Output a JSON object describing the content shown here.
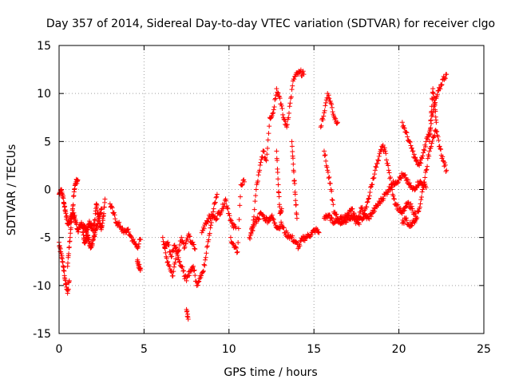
{
  "chart_data": {
    "type": "scatter",
    "title": "Day 357 of 2014, Sidereal Day-to-day VTEC variation (SDTVAR) for receiver clgo",
    "xlabel": "GPS time / hours",
    "ylabel": "SDTVAR / TECUs",
    "xlim": [
      0,
      25
    ],
    "ylim": [
      -15,
      15
    ],
    "xticks": [
      0,
      5,
      10,
      15,
      20,
      25
    ],
    "yticks": [
      -15,
      -10,
      -5,
      0,
      5,
      10,
      15
    ],
    "grid": true,
    "marker": "plus",
    "color": "#ff0000",
    "series": [
      {
        "name": "SDTVAR",
        "segments": [
          {
            "x": [
              0.0,
              0.1,
              0.2,
              0.3,
              0.4,
              0.5,
              0.6,
              0.7,
              0.8,
              0.9,
              1.0,
              1.1,
              1.2,
              1.3,
              1.4,
              1.5,
              1.6,
              1.7,
              1.8,
              1.9,
              2.0,
              2.1,
              2.2,
              2.3,
              2.4,
              2.5,
              2.6,
              2.7
            ],
            "y": [
              -0.5,
              0.0,
              -0.5,
              -1.5,
              -2.5,
              -3.5,
              -3.5,
              -3.0,
              -2.5,
              -2.8,
              -3.5,
              -4.2,
              -4.0,
              -3.6,
              -3.8,
              -4.0,
              -4.4,
              -3.9,
              -3.5,
              -3.8,
              -4.3,
              -3.2,
              -1.5,
              -2.5,
              -3.5,
              -4.0,
              -2.8,
              -1.0
            ]
          },
          {
            "x": [
              0.0,
              0.1,
              0.2,
              0.3,
              0.4,
              0.5,
              0.6
            ],
            "y": [
              -5.5,
              -6.5,
              -7.5,
              -8.5,
              -9.8,
              -10.8,
              -9.5
            ]
          },
          {
            "x": [
              0.5,
              0.6,
              0.7,
              0.8,
              0.9,
              1.0,
              1.1
            ],
            "y": [
              -8.0,
              -6.0,
              -4.0,
              -2.0,
              0.0,
              0.8,
              1.0
            ]
          },
          {
            "x": [
              1.4,
              1.5,
              1.6,
              1.7,
              1.8,
              1.9,
              2.0,
              2.1,
              2.2,
              2.3,
              2.4,
              2.5
            ],
            "y": [
              -4.5,
              -5.5,
              -5.0,
              -4.8,
              -5.8,
              -6.0,
              -5.2,
              -4.5,
              -4.0,
              -3.2,
              -2.5,
              -2.0
            ]
          },
          {
            "x": [
              3.0,
              3.2,
              3.4,
              3.6,
              3.8,
              4.0,
              4.2,
              4.4,
              4.6,
              4.8
            ],
            "y": [
              -1.5,
              -2.5,
              -3.5,
              -3.8,
              -4.5,
              -4.2,
              -4.8,
              -5.5,
              -6.0,
              -5.2
            ]
          },
          {
            "x": [
              4.6,
              4.7,
              4.8
            ],
            "y": [
              -7.5,
              -8.0,
              -8.2
            ]
          },
          {
            "x": [
              6.1,
              6.3,
              6.5,
              6.7,
              6.9,
              7.1,
              7.3,
              7.5,
              7.7,
              7.9,
              8.1,
              8.3,
              8.5,
              8.7,
              8.9,
              9.1,
              9.3
            ],
            "y": [
              -5.0,
              -7.0,
              -8.0,
              -9.0,
              -6.5,
              -7.5,
              -8.5,
              -9.5,
              -8.5,
              -8.0,
              -10.0,
              -9.0,
              -8.5,
              -6.0,
              -4.0,
              -2.0,
              -0.5
            ]
          },
          {
            "x": [
              6.2,
              6.4,
              6.6,
              6.8,
              7.0,
              7.2,
              7.4,
              7.6,
              7.8,
              8.0
            ],
            "y": [
              -6.0,
              -5.5,
              -7.0,
              -5.8,
              -6.5,
              -5.0,
              -6.0,
              -4.8,
              -5.5,
              -6.2
            ]
          },
          {
            "x": [
              7.5,
              7.6
            ],
            "y": [
              -12.5,
              -13.5
            ]
          },
          {
            "x": [
              8.4,
              8.6,
              8.8,
              9.0,
              9.2,
              9.4,
              9.6,
              9.8,
              10.0,
              10.2,
              10.4
            ],
            "y": [
              -4.5,
              -3.5,
              -3.0,
              -2.8,
              -3.0,
              -2.5,
              -2.0,
              -1.0,
              -2.5,
              -3.8,
              -4.0
            ]
          },
          {
            "x": [
              10.1,
              10.3,
              10.5,
              10.7,
              10.9
            ],
            "y": [
              -5.0,
              -6.0,
              -6.5,
              0.5,
              0.8
            ]
          },
          {
            "x": [
              11.2,
              11.4,
              11.6,
              11.8,
              12.0,
              12.2,
              12.4,
              12.6,
              12.8,
              13.0,
              13.2,
              13.4,
              13.6,
              13.8,
              14.0,
              14.2,
              14.4
            ],
            "y": [
              -5.0,
              -4.0,
              0.0,
              2.0,
              4.0,
              3.0,
              7.5,
              8.0,
              10.5,
              9.5,
              7.5,
              6.5,
              9.0,
              11.5,
              12.0,
              12.2,
              12.0
            ]
          },
          {
            "x": [
              11.3,
              11.5,
              11.7,
              11.9,
              12.1,
              12.3,
              12.5,
              12.7,
              12.9,
              13.1,
              13.3,
              13.5,
              13.7,
              13.9,
              14.1,
              14.3,
              14.5,
              14.7,
              14.9,
              15.1,
              15.3
            ],
            "y": [
              -4.5,
              -3.5,
              -3.0,
              -2.5,
              -3.0,
              -3.2,
              -2.8,
              -3.5,
              -4.0,
              -3.6,
              -4.5,
              -4.8,
              -5.0,
              -5.5,
              -6.0,
              -5.2,
              -5.0,
              -4.8,
              -4.5,
              -4.2,
              -4.5
            ]
          },
          {
            "x": [
              12.8,
              12.9,
              13.0,
              13.1
            ],
            "y": [
              4.0,
              0.5,
              -2.5,
              -2.0
            ]
          },
          {
            "x": [
              13.7,
              13.8,
              13.9,
              14.0
            ],
            "y": [
              5.0,
              2.0,
              -0.5,
              -3.0
            ]
          },
          {
            "x": [
              15.4,
              15.6,
              15.8,
              16.0,
              16.2,
              16.4
            ],
            "y": [
              6.5,
              8.0,
              10.0,
              9.0,
              7.5,
              7.0
            ]
          },
          {
            "x": [
              15.6,
              15.8,
              16.0,
              16.2,
              16.4,
              16.6,
              16.8,
              17.0,
              17.2,
              17.4,
              17.6,
              17.8,
              18.0,
              18.2,
              18.4,
              18.6,
              18.8,
              19.0,
              19.2,
              19.4,
              19.6,
              19.8,
              20.0,
              20.2,
              20.4,
              20.6,
              20.8,
              21.0
            ],
            "y": [
              4.0,
              2.0,
              0.0,
              -2.5,
              -3.0,
              -3.5,
              -3.0,
              -2.5,
              -2.0,
              -2.8,
              -3.0,
              -2.0,
              -2.5,
              -1.0,
              0.5,
              2.0,
              3.0,
              4.5,
              4.0,
              2.0,
              0.0,
              -1.5,
              -2.0,
              -2.5,
              -1.8,
              -1.5,
              -2.0,
              -2.8
            ]
          },
          {
            "x": [
              15.6,
              15.8,
              16.0,
              16.2,
              16.4,
              16.6,
              16.8,
              17.0,
              17.2,
              17.4,
              17.6,
              17.8,
              18.0,
              18.2,
              18.4,
              18.6,
              18.8,
              19.0,
              19.2,
              19.4,
              19.6,
              19.8,
              20.0,
              20.2,
              20.4,
              20.6,
              20.8,
              21.0,
              21.2,
              21.4,
              21.6
            ],
            "y": [
              -3.0,
              -2.8,
              -3.0,
              -3.5,
              -3.2,
              -3.0,
              -3.3,
              -3.0,
              -2.8,
              -3.2,
              -3.5,
              -3.0,
              -2.8,
              -3.0,
              -2.5,
              -2.0,
              -1.5,
              -1.0,
              -0.5,
              0.0,
              0.5,
              0.8,
              1.0,
              1.5,
              1.2,
              0.5,
              0.0,
              0.3,
              0.8,
              0.5,
              0.2
            ]
          },
          {
            "x": [
              20.2,
              20.4,
              20.6,
              20.8,
              21.0,
              21.2,
              21.4,
              21.6,
              21.8,
              22.0,
              22.2,
              22.4,
              22.6,
              22.8
            ],
            "y": [
              7.0,
              6.0,
              5.0,
              4.0,
              3.0,
              2.5,
              3.5,
              5.0,
              6.0,
              8.0,
              9.5,
              10.5,
              11.5,
              12.0
            ]
          },
          {
            "x": [
              20.2,
              20.4,
              20.6,
              20.8,
              21.0,
              21.2,
              21.4,
              21.6,
              21.8,
              22.0,
              22.2,
              22.4,
              22.6,
              22.8
            ],
            "y": [
              -3.5,
              -3.0,
              -3.8,
              -3.5,
              -3.0,
              -2.0,
              0.0,
              2.0,
              4.0,
              5.5,
              6.0,
              4.5,
              3.0,
              2.0
            ]
          },
          {
            "x": [
              21.8,
              21.9,
              22.0,
              22.1,
              22.2
            ],
            "y": [
              5.0,
              8.0,
              10.5,
              9.0,
              7.0
            ]
          }
        ]
      }
    ]
  }
}
